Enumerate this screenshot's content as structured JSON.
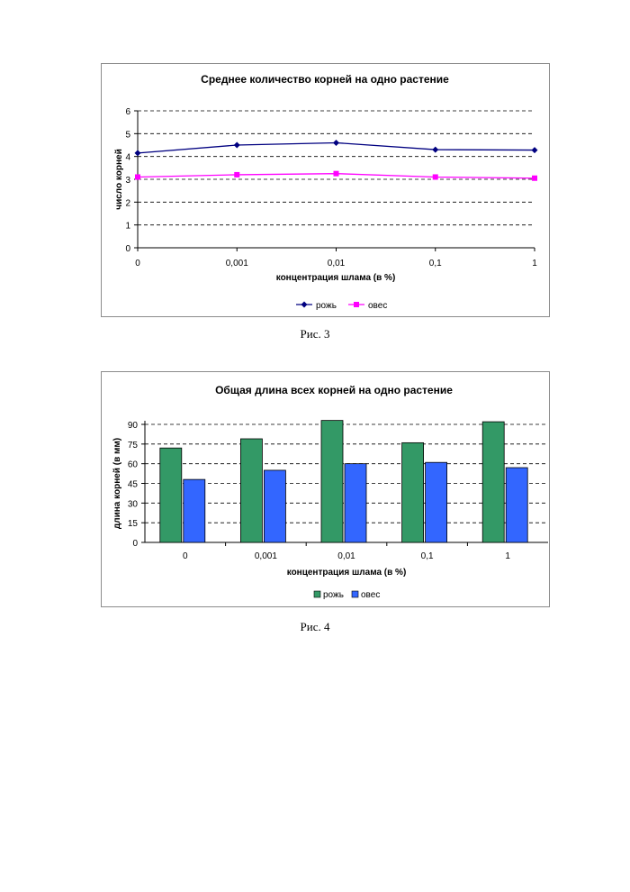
{
  "chart_data": [
    {
      "type": "line",
      "title": "Среднее количество корней на одно растение",
      "xlabel": "концентрация шлама (в %)",
      "ylabel": "число корней",
      "categories": [
        "0",
        "0,001",
        "0,01",
        "0,1",
        "1"
      ],
      "yticks": [
        "0",
        "1",
        "2",
        "3",
        "4",
        "5",
        "6"
      ],
      "ylim": [
        0,
        6
      ],
      "grid": true,
      "legend_position": "bottom",
      "series": [
        {
          "name": "рожь",
          "values": [
            4.15,
            4.5,
            4.6,
            4.3,
            4.28
          ],
          "color": "#000080",
          "marker": "diamond"
        },
        {
          "name": "овес",
          "values": [
            3.1,
            3.2,
            3.25,
            3.1,
            3.05
          ],
          "color": "#ff00ff",
          "marker": "square"
        }
      ]
    },
    {
      "type": "bar",
      "title": "Общая длина всех корней на одно растение",
      "xlabel": "концентрация шлама (в %)",
      "ylabel": "длина корней (в мм)",
      "categories": [
        "0",
        "0,001",
        "0,01",
        "0,1",
        "1"
      ],
      "yticks": [
        "0",
        "15",
        "30",
        "45",
        "60",
        "75",
        "90"
      ],
      "ylim": [
        0,
        90
      ],
      "grid": true,
      "legend_position": "bottom",
      "series": [
        {
          "name": "рожь",
          "values": [
            72,
            79,
            93,
            76,
            92
          ],
          "color": "#339966"
        },
        {
          "name": "овес",
          "values": [
            48,
            55,
            60,
            61,
            57
          ],
          "color": "#3366ff"
        }
      ]
    }
  ],
  "captions": [
    "Рис. 3",
    "Рис. 4"
  ]
}
